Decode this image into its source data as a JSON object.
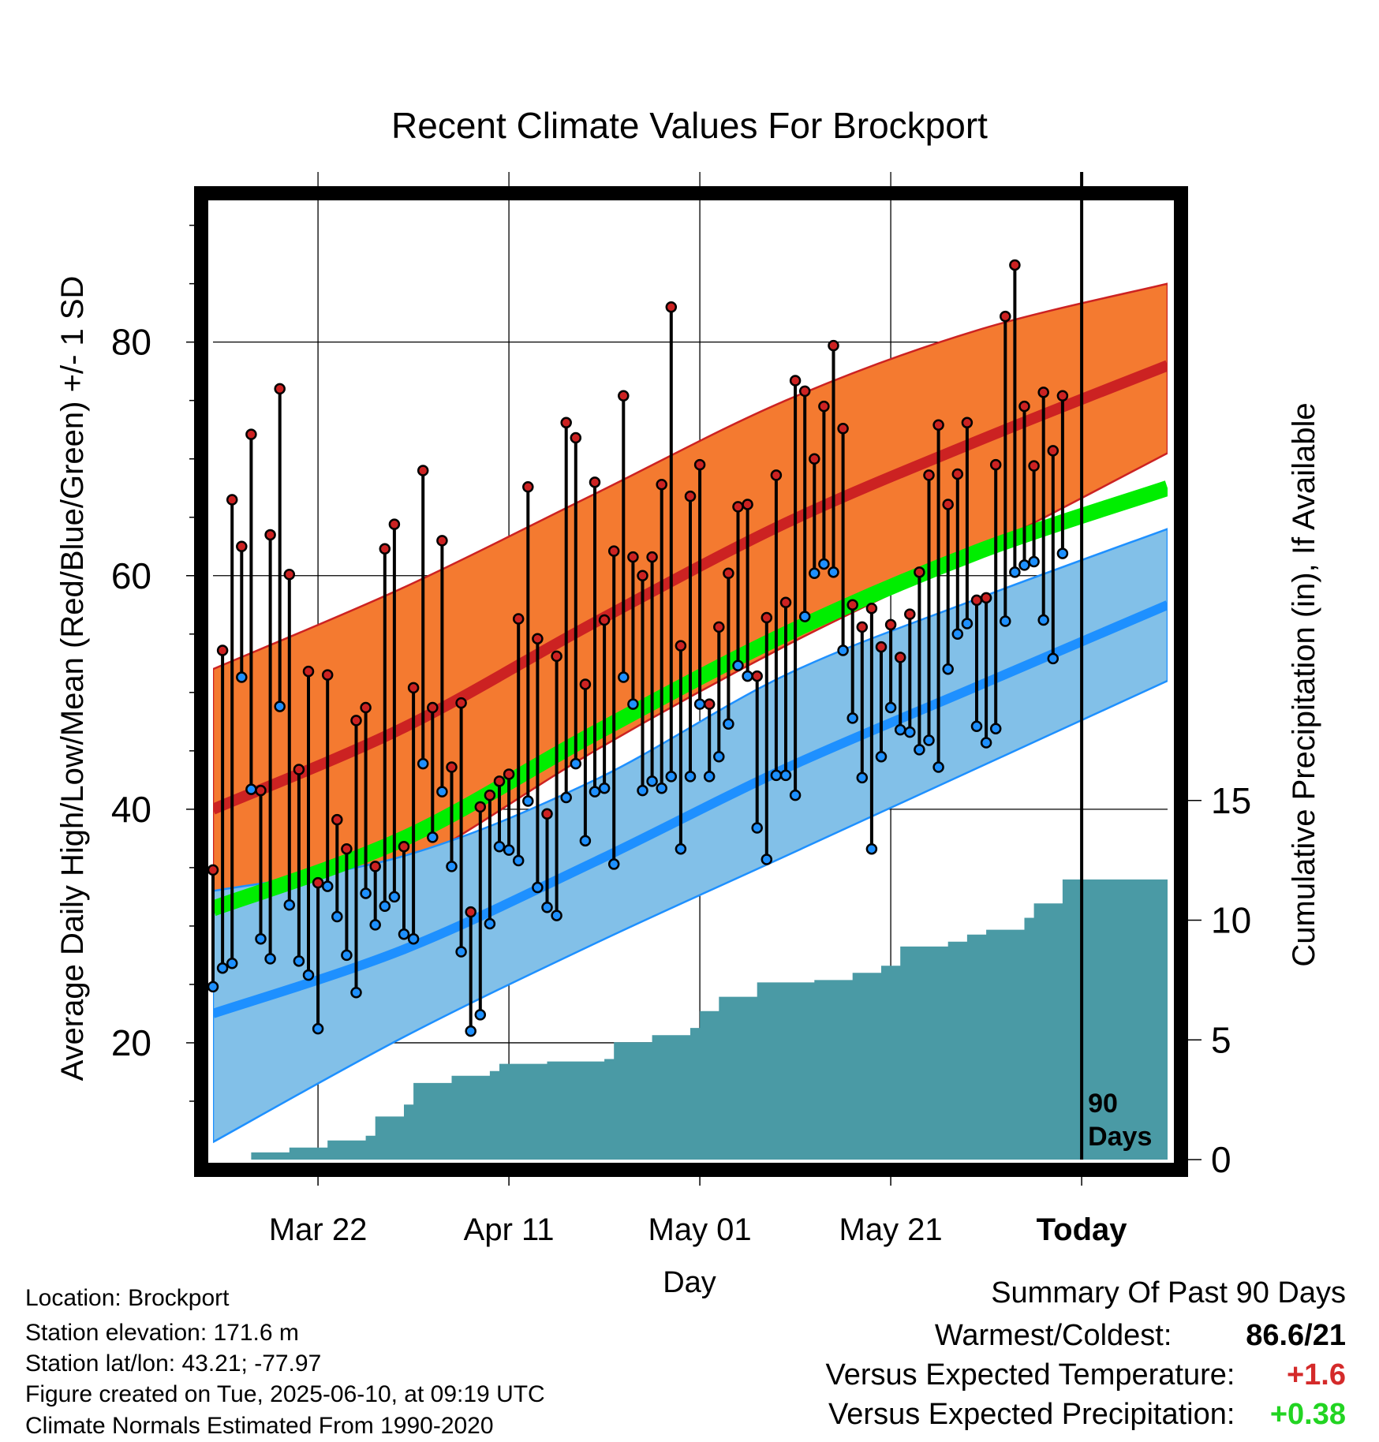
{
  "chart_data": {
    "type": "line",
    "title": "Recent Climate Values For Brockport",
    "xlabel": "Day",
    "ylabel": "Average Daily High/Low/Mean (Red/Blue/Green) +/- 1 SD",
    "y2label": "Cumulative Precipitation (in), If Available",
    "ylim": [
      10,
      92
    ],
    "y_ticks": [
      "20",
      "40",
      "60",
      "80"
    ],
    "y2lim": [
      0,
      40
    ],
    "y2_ticks": [
      "0",
      "5",
      "10",
      "15"
    ],
    "x_range": [
      "Mar 11",
      "Jun 19"
    ],
    "x_tick_labels": [
      "Mar 22",
      "Apr 11",
      "May 01",
      "May 21",
      "Today"
    ],
    "today_marker": "Jun 10",
    "period_label": "90 Days",
    "grid": true,
    "normals": {
      "high_mean": [
        {
          "x": "Mar 11",
          "y": 40.0
        },
        {
          "x": "Mar 31",
          "y": 47.0
        },
        {
          "x": "Apr 20",
          "y": 56.0
        },
        {
          "x": "May 10",
          "y": 64.5
        },
        {
          "x": "May 30",
          "y": 71.5
        },
        {
          "x": "Jun 19",
          "y": 78.0
        }
      ],
      "high_upper": [
        {
          "x": "Mar 11",
          "y": 52.0
        },
        {
          "x": "Mar 31",
          "y": 59.0
        },
        {
          "x": "Apr 20",
          "y": 67.0
        },
        {
          "x": "May 10",
          "y": 75.0
        },
        {
          "x": "May 30",
          "y": 81.0
        },
        {
          "x": "Jun 19",
          "y": 85.0
        }
      ],
      "high_lower": [
        {
          "x": "Mar 11",
          "y": 28.0
        },
        {
          "x": "Mar 31",
          "y": 35.0
        },
        {
          "x": "Apr 20",
          "y": 45.0
        },
        {
          "x": "May 10",
          "y": 54.0
        },
        {
          "x": "May 30",
          "y": 62.0
        },
        {
          "x": "Jun 19",
          "y": 70.5
        }
      ],
      "mean": [
        {
          "x": "Mar 11",
          "y": 31.5
        },
        {
          "x": "Mar 31",
          "y": 37.5
        },
        {
          "x": "Apr 20",
          "y": 46.5
        },
        {
          "x": "May 10",
          "y": 55.0
        },
        {
          "x": "May 30",
          "y": 62.0
        },
        {
          "x": "Jun 19",
          "y": 67.5
        }
      ],
      "low_mean": [
        {
          "x": "Mar 11",
          "y": 22.5
        },
        {
          "x": "Mar 31",
          "y": 28.0
        },
        {
          "x": "Apr 20",
          "y": 35.5
        },
        {
          "x": "May 10",
          "y": 43.5
        },
        {
          "x": "May 30",
          "y": 50.5
        },
        {
          "x": "Jun 19",
          "y": 57.5
        }
      ],
      "low_upper": [
        {
          "x": "Mar 11",
          "y": 33.0
        },
        {
          "x": "Mar 31",
          "y": 36.0
        },
        {
          "x": "Apr 20",
          "y": 42.5
        },
        {
          "x": "May 10",
          "y": 51.5
        },
        {
          "x": "May 30",
          "y": 58.0
        },
        {
          "x": "Jun 19",
          "y": 64.0
        }
      ],
      "low_lower": [
        {
          "x": "Mar 11",
          "y": 11.5
        },
        {
          "x": "Mar 31",
          "y": 20.5
        },
        {
          "x": "Apr 20",
          "y": 28.5
        },
        {
          "x": "May 10",
          "y": 36.0
        },
        {
          "x": "May 30",
          "y": 43.5
        },
        {
          "x": "Jun 19",
          "y": 51.0
        }
      ]
    },
    "daily_observations": [
      {
        "date": "Mar 11",
        "high": 34.8,
        "low": 24.8
      },
      {
        "date": "Mar 12",
        "high": 53.6,
        "low": 26.4
      },
      {
        "date": "Mar 13",
        "high": 66.5,
        "low": 26.8
      },
      {
        "date": "Mar 14",
        "high": 62.5,
        "low": 51.3
      },
      {
        "date": "Mar 15",
        "high": 72.1,
        "low": 41.7
      },
      {
        "date": "Mar 16",
        "high": 41.6,
        "low": 28.9
      },
      {
        "date": "Mar 17",
        "high": 63.5,
        "low": 27.2
      },
      {
        "date": "Mar 18",
        "high": 76.0,
        "low": 48.8
      },
      {
        "date": "Mar 19",
        "high": 60.1,
        "low": 31.8
      },
      {
        "date": "Mar 20",
        "high": 43.4,
        "low": 27.0
      },
      {
        "date": "Mar 21",
        "high": 51.8,
        "low": 25.8
      },
      {
        "date": "Mar 22",
        "high": 33.7,
        "low": 21.2
      },
      {
        "date": "Mar 23",
        "high": 51.5,
        "low": 33.4
      },
      {
        "date": "Mar 24",
        "high": 39.1,
        "low": 30.8
      },
      {
        "date": "Mar 25",
        "high": 36.6,
        "low": 27.5
      },
      {
        "date": "Mar 26",
        "high": 47.6,
        "low": 24.3
      },
      {
        "date": "Mar 27",
        "high": 48.7,
        "low": 32.8
      },
      {
        "date": "Mar 28",
        "high": 35.1,
        "low": 30.1
      },
      {
        "date": "Mar 29",
        "high": 62.3,
        "low": 31.7
      },
      {
        "date": "Mar 30",
        "high": 64.4,
        "low": 32.5
      },
      {
        "date": "Mar 31",
        "high": 36.8,
        "low": 29.3
      },
      {
        "date": "Apr 01",
        "high": 50.4,
        "low": 28.9
      },
      {
        "date": "Apr 02",
        "high": 69.0,
        "low": 43.9
      },
      {
        "date": "Apr 03",
        "high": 48.7,
        "low": 37.6
      },
      {
        "date": "Apr 04",
        "high": 63.0,
        "low": 41.5
      },
      {
        "date": "Apr 05",
        "high": 43.6,
        "low": 35.1
      },
      {
        "date": "Apr 06",
        "high": 49.1,
        "low": 27.8
      },
      {
        "date": "Apr 07",
        "high": 31.2,
        "low": 21.0
      },
      {
        "date": "Apr 08",
        "high": 40.2,
        "low": 22.4
      },
      {
        "date": "Apr 09",
        "high": 41.2,
        "low": 30.2
      },
      {
        "date": "Apr 10",
        "high": 42.4,
        "low": 36.8
      },
      {
        "date": "Apr 11",
        "high": 43.0,
        "low": 36.5
      },
      {
        "date": "Apr 12",
        "high": 56.3,
        "low": 35.6
      },
      {
        "date": "Apr 13",
        "high": 67.6,
        "low": 40.7
      },
      {
        "date": "Apr 14",
        "high": 54.6,
        "low": 33.3
      },
      {
        "date": "Apr 15",
        "high": 39.6,
        "low": 31.6
      },
      {
        "date": "Apr 16",
        "high": 53.1,
        "low": 30.9
      },
      {
        "date": "Apr 17",
        "high": 73.1,
        "low": 41.0
      },
      {
        "date": "Apr 18",
        "high": 71.8,
        "low": 43.9
      },
      {
        "date": "Apr 19",
        "high": 50.7,
        "low": 37.3
      },
      {
        "date": "Apr 20",
        "high": 68.0,
        "low": 41.5
      },
      {
        "date": "Apr 21",
        "high": 56.2,
        "low": 41.8
      },
      {
        "date": "Apr 22",
        "high": 62.1,
        "low": 35.3
      },
      {
        "date": "Apr 23",
        "high": 75.4,
        "low": 51.3
      },
      {
        "date": "Apr 24",
        "high": 61.6,
        "low": 49.0
      },
      {
        "date": "Apr 25",
        "high": 60.0,
        "low": 41.6
      },
      {
        "date": "Apr 26",
        "high": 61.6,
        "low": 42.4
      },
      {
        "date": "Apr 27",
        "high": 67.8,
        "low": 41.8
      },
      {
        "date": "Apr 28",
        "high": 83.0,
        "low": 42.8
      },
      {
        "date": "Apr 29",
        "high": 54.0,
        "low": 36.6
      },
      {
        "date": "Apr 30",
        "high": 66.8,
        "low": 42.8
      },
      {
        "date": "May 01",
        "high": 69.5,
        "low": 49.0
      },
      {
        "date": "May 02",
        "high": 49.0,
        "low": 42.8
      },
      {
        "date": "May 03",
        "high": 55.6,
        "low": 44.5
      },
      {
        "date": "May 04",
        "high": 60.2,
        "low": 47.3
      },
      {
        "date": "May 05",
        "high": 65.9,
        "low": 52.3
      },
      {
        "date": "May 06",
        "high": 66.1,
        "low": 51.4
      },
      {
        "date": "May 07",
        "high": 51.4,
        "low": 38.4
      },
      {
        "date": "May 08",
        "high": 56.4,
        "low": 35.7
      },
      {
        "date": "May 09",
        "high": 68.6,
        "low": 42.9
      },
      {
        "date": "May 10",
        "high": 57.7,
        "low": 42.9
      },
      {
        "date": "May 11",
        "high": 76.7,
        "low": 41.2
      },
      {
        "date": "May 12",
        "high": 75.8,
        "low": 56.5
      },
      {
        "date": "May 13",
        "high": 70.0,
        "low": 60.2
      },
      {
        "date": "May 14",
        "high": 74.5,
        "low": 61.0
      },
      {
        "date": "May 15",
        "high": 79.7,
        "low": 60.3
      },
      {
        "date": "May 16",
        "high": 72.6,
        "low": 53.6
      },
      {
        "date": "May 17",
        "high": 57.5,
        "low": 47.8
      },
      {
        "date": "May 18",
        "high": 55.6,
        "low": 42.7
      },
      {
        "date": "May 19",
        "high": 57.2,
        "low": 36.6
      },
      {
        "date": "May 20",
        "high": 53.9,
        "low": 44.5
      },
      {
        "date": "May 21",
        "high": 55.8,
        "low": 48.7
      },
      {
        "date": "May 22",
        "high": 53.0,
        "low": 46.8
      },
      {
        "date": "May 23",
        "high": 56.7,
        "low": 46.6
      },
      {
        "date": "May 24",
        "high": 60.3,
        "low": 45.1
      },
      {
        "date": "May 25",
        "high": 68.6,
        "low": 45.9
      },
      {
        "date": "May 26",
        "high": 72.9,
        "low": 43.6
      },
      {
        "date": "May 27",
        "high": 66.1,
        "low": 52.0
      },
      {
        "date": "May 28",
        "high": 68.7,
        "low": 55.0
      },
      {
        "date": "May 29",
        "high": 73.1,
        "low": 55.9
      },
      {
        "date": "May 30",
        "high": 57.9,
        "low": 47.1
      },
      {
        "date": "May 31",
        "high": 58.1,
        "low": 45.7
      },
      {
        "date": "Jun 01",
        "high": 69.5,
        "low": 46.9
      },
      {
        "date": "Jun 02",
        "high": 82.2,
        "low": 56.1
      },
      {
        "date": "Jun 03",
        "high": 86.6,
        "low": 60.3
      },
      {
        "date": "Jun 04",
        "high": 74.5,
        "low": 60.9
      },
      {
        "date": "Jun 05",
        "high": 69.4,
        "low": 61.2
      },
      {
        "date": "Jun 06",
        "high": 75.7,
        "low": 56.2
      },
      {
        "date": "Jun 07",
        "high": 70.7,
        "low": 52.9
      },
      {
        "date": "Jun 08",
        "high": 75.4,
        "low": 61.9
      }
    ],
    "cumulative_precipitation": [
      {
        "x": "Mar 11",
        "y": 0.0
      },
      {
        "x": "Mar 15",
        "y": 0.3
      },
      {
        "x": "Mar 19",
        "y": 0.5
      },
      {
        "x": "Mar 23",
        "y": 0.8
      },
      {
        "x": "Mar 27",
        "y": 1.0
      },
      {
        "x": "Mar 28",
        "y": 1.8
      },
      {
        "x": "Mar 31",
        "y": 2.3
      },
      {
        "x": "Apr 01",
        "y": 3.2
      },
      {
        "x": "Apr 05",
        "y": 3.5
      },
      {
        "x": "Apr 09",
        "y": 3.7
      },
      {
        "x": "Apr 10",
        "y": 4.0
      },
      {
        "x": "Apr 15",
        "y": 4.1
      },
      {
        "x": "Apr 21",
        "y": 4.2
      },
      {
        "x": "Apr 22",
        "y": 4.9
      },
      {
        "x": "Apr 26",
        "y": 5.2
      },
      {
        "x": "Apr 30",
        "y": 5.5
      },
      {
        "x": "May 01",
        "y": 6.2
      },
      {
        "x": "May 03",
        "y": 6.8
      },
      {
        "x": "May 07",
        "y": 7.4
      },
      {
        "x": "May 13",
        "y": 7.5
      },
      {
        "x": "May 17",
        "y": 7.8
      },
      {
        "x": "May 20",
        "y": 8.1
      },
      {
        "x": "May 22",
        "y": 8.9
      },
      {
        "x": "May 27",
        "y": 9.1
      },
      {
        "x": "May 29",
        "y": 9.4
      },
      {
        "x": "May 31",
        "y": 9.6
      },
      {
        "x": "Jun 04",
        "y": 10.1
      },
      {
        "x": "Jun 05",
        "y": 10.7
      },
      {
        "x": "Jun 08",
        "y": 11.7
      },
      {
        "x": "Jun 19",
        "y": 11.7
      }
    ],
    "colors": {
      "high": "#cc2222",
      "high_band": "#f47a30",
      "mean": "#00ee00",
      "low": "#1e90ff",
      "low_band": "#82c0e8",
      "precip": "#4a9aa5"
    }
  },
  "footer": {
    "location": "Location: Brockport",
    "elevation": "Station elevation: 171.6 m",
    "latlon": "Station lat/lon: 43.21; -77.97",
    "created": "Figure created on Tue, 2025-06-10, at 09:19 UTC",
    "normals": "Climate Normals Estimated From 1990-2020"
  },
  "summary": {
    "heading": "Summary Of Past 90 Days",
    "warmest_label": "Warmest/Coldest:",
    "warmest_value": "86.6/21",
    "temp_label": "Versus Expected Temperature:",
    "temp_value": "+1.6",
    "temp_color": "#d42a2a",
    "precip_label": "Versus Expected Precipitation:",
    "precip_value": "+0.38",
    "precip_color": "#22d422"
  }
}
